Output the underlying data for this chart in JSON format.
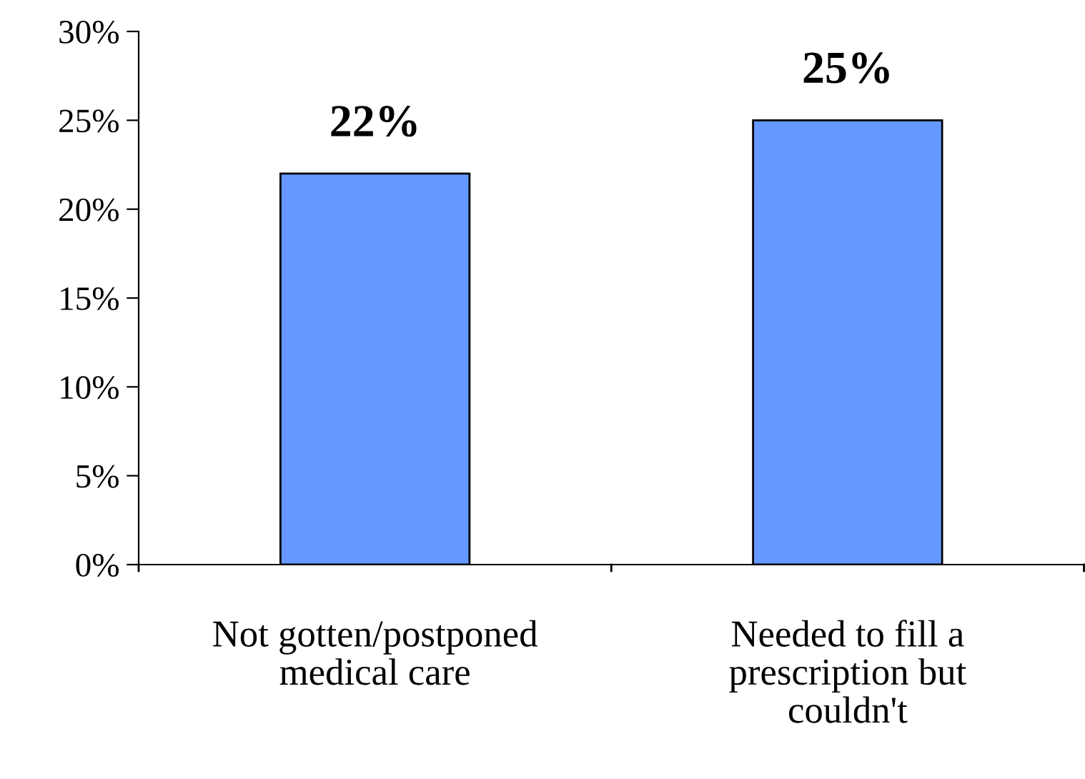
{
  "chart_data": {
    "type": "bar",
    "categories": [
      "Not gotten/postponed\nmedical care",
      "Needed to fill a\nprescription but\ncouldn't"
    ],
    "values": [
      22,
      25
    ],
    "color": "#6699ff",
    "value_labels": [
      "22%",
      "25%"
    ],
    "ylim": [
      0,
      30
    ],
    "yticks": [
      {
        "value": 0,
        "label": "0%"
      },
      {
        "value": 5,
        "label": "5%"
      },
      {
        "value": 10,
        "label": "10%"
      },
      {
        "value": 15,
        "label": "15%"
      },
      {
        "value": 20,
        "label": "20%"
      },
      {
        "value": 25,
        "label": "25%"
      },
      {
        "value": 30,
        "label": "30%"
      }
    ],
    "grid": false
  }
}
